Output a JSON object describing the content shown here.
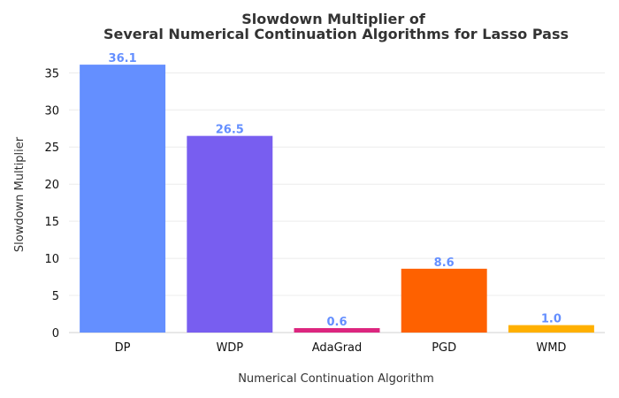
{
  "chart_data": {
    "type": "bar",
    "title_lines": [
      "Slowdown Multiplier of",
      "Several Numerical Continuation Algorithms for Lasso Pass"
    ],
    "xlabel": "Numerical Continuation Algorithm",
    "ylabel": "Slowdown Multiplier",
    "categories": [
      "DP",
      "WDP",
      "AdaGrad",
      "PGD",
      "WMD"
    ],
    "values": [
      36.1,
      26.5,
      0.6,
      8.6,
      1.0
    ],
    "value_labels": [
      "36.1",
      "26.5",
      "0.6",
      "8.6",
      "1.0"
    ],
    "colors": [
      "#648FFF",
      "#785EF0",
      "#DC267F",
      "#FE6100",
      "#FFB000"
    ],
    "label_color": "#648FFF",
    "ylim": [
      0,
      37.9
    ],
    "yticks": [
      0,
      5,
      10,
      15,
      20,
      25,
      30,
      35
    ],
    "grid": true
  }
}
